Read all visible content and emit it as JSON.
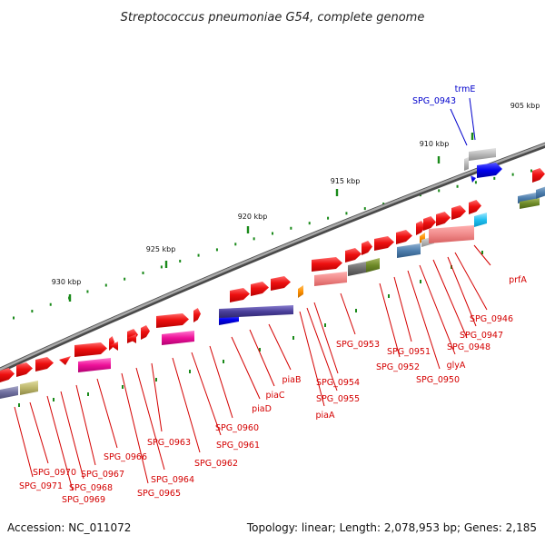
{
  "title": "Streptococcus pneumoniae G54, complete genome",
  "footer": {
    "accession": "Accession: NC_011072",
    "summary": "Topology: linear; Length: 2,078,953 bp; Genes: 2,185"
  },
  "scale_labels": [
    "905 kbp",
    "910 kbp",
    "915 kbp",
    "920 kbp",
    "925 kbp",
    "930 kbp"
  ],
  "colors": {
    "axis": "#808080",
    "tick": "#1a8a1a",
    "gene_red": "#ee1111",
    "label_red": "#d40000",
    "label_blue": "#0000cc"
  },
  "gene_labels_blue": [
    "trmE",
    "SPG_0943"
  ],
  "gene_labels_red": [
    "prfA",
    "SPG_0946",
    "SPG_0947",
    "SPG_0948",
    "glyA",
    "SPG_0950",
    "SPG_0951",
    "SPG_0952",
    "SPG_0953",
    "SPG_0954",
    "SPG_0955",
    "piaA",
    "piaB",
    "piaC",
    "piaD",
    "SPG_0960",
    "SPG_0961",
    "SPG_0962",
    "SPG_0963",
    "SPG_0964",
    "SPG_0965",
    "SPG_0966",
    "SPG_0967",
    "SPG_0968",
    "SPG_0969",
    "SPG_0970",
    "SPG_0971"
  ]
}
